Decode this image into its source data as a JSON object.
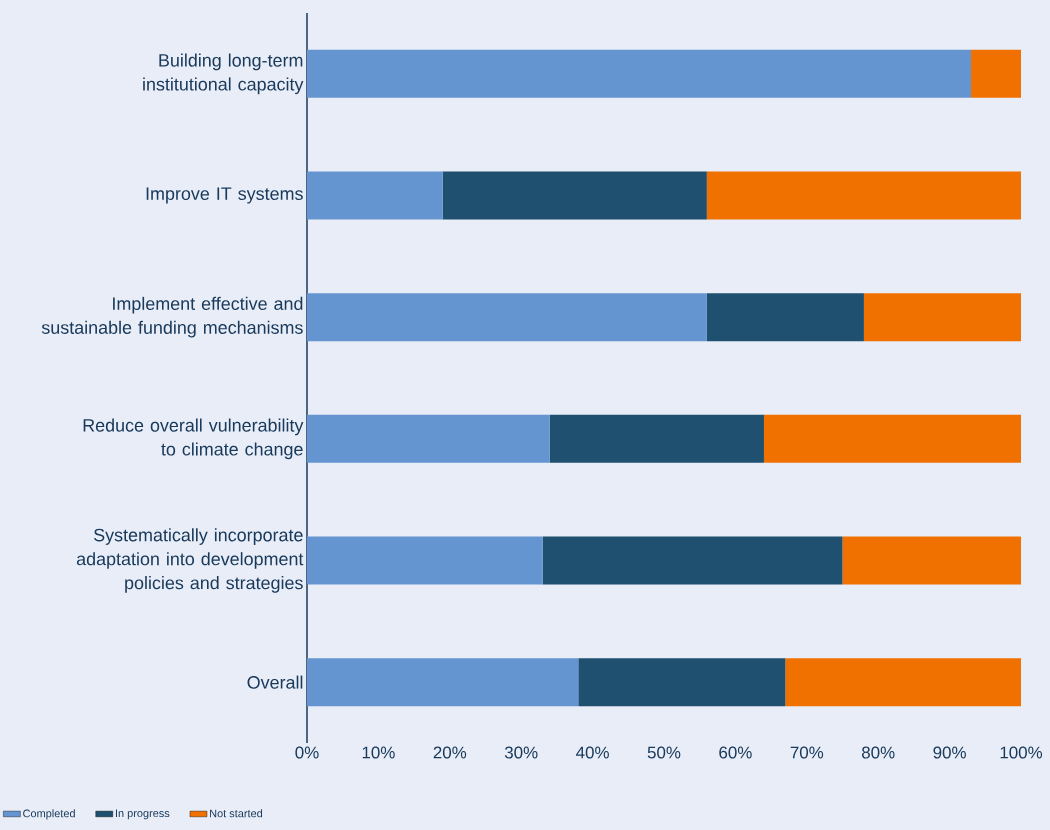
{
  "chart_data": {
    "type": "bar",
    "orientation": "horizontal",
    "stacked": true,
    "categories": [
      "Building long-term institutional capacity",
      "Improve IT systems",
      "Implement effective and sustainable funding mechanisms",
      "Reduce overall vulnerability to climate change",
      "Systematically incorporate adaptation into development policies and strategies",
      "Overall"
    ],
    "series": [
      {
        "name": "Completed",
        "color": "#6495d0",
        "values": [
          93,
          19,
          56,
          34,
          33,
          38
        ]
      },
      {
        "name": "In progress",
        "color": "#1f5070",
        "values": [
          0,
          37,
          22,
          30,
          42,
          29
        ]
      },
      {
        "name": "Not started",
        "color": "#f07000",
        "values": [
          7,
          44,
          22,
          36,
          25,
          33
        ]
      }
    ],
    "xlim": [
      0,
      100
    ],
    "xticks": [
      {
        "value": 0,
        "label": "0%"
      },
      {
        "value": 10,
        "label": "10%"
      },
      {
        "value": 20,
        "label": "20%"
      },
      {
        "value": 30,
        "label": "30%"
      },
      {
        "value": 40,
        "label": "40%"
      },
      {
        "value": 50,
        "label": "50%"
      },
      {
        "value": 60,
        "label": "60%"
      },
      {
        "value": 70,
        "label": "70%"
      },
      {
        "value": 80,
        "label": "80%"
      },
      {
        "value": 90,
        "label": "90%"
      },
      {
        "value": 100,
        "label": "100%"
      }
    ],
    "grid": false,
    "legend": "bottom left"
  }
}
